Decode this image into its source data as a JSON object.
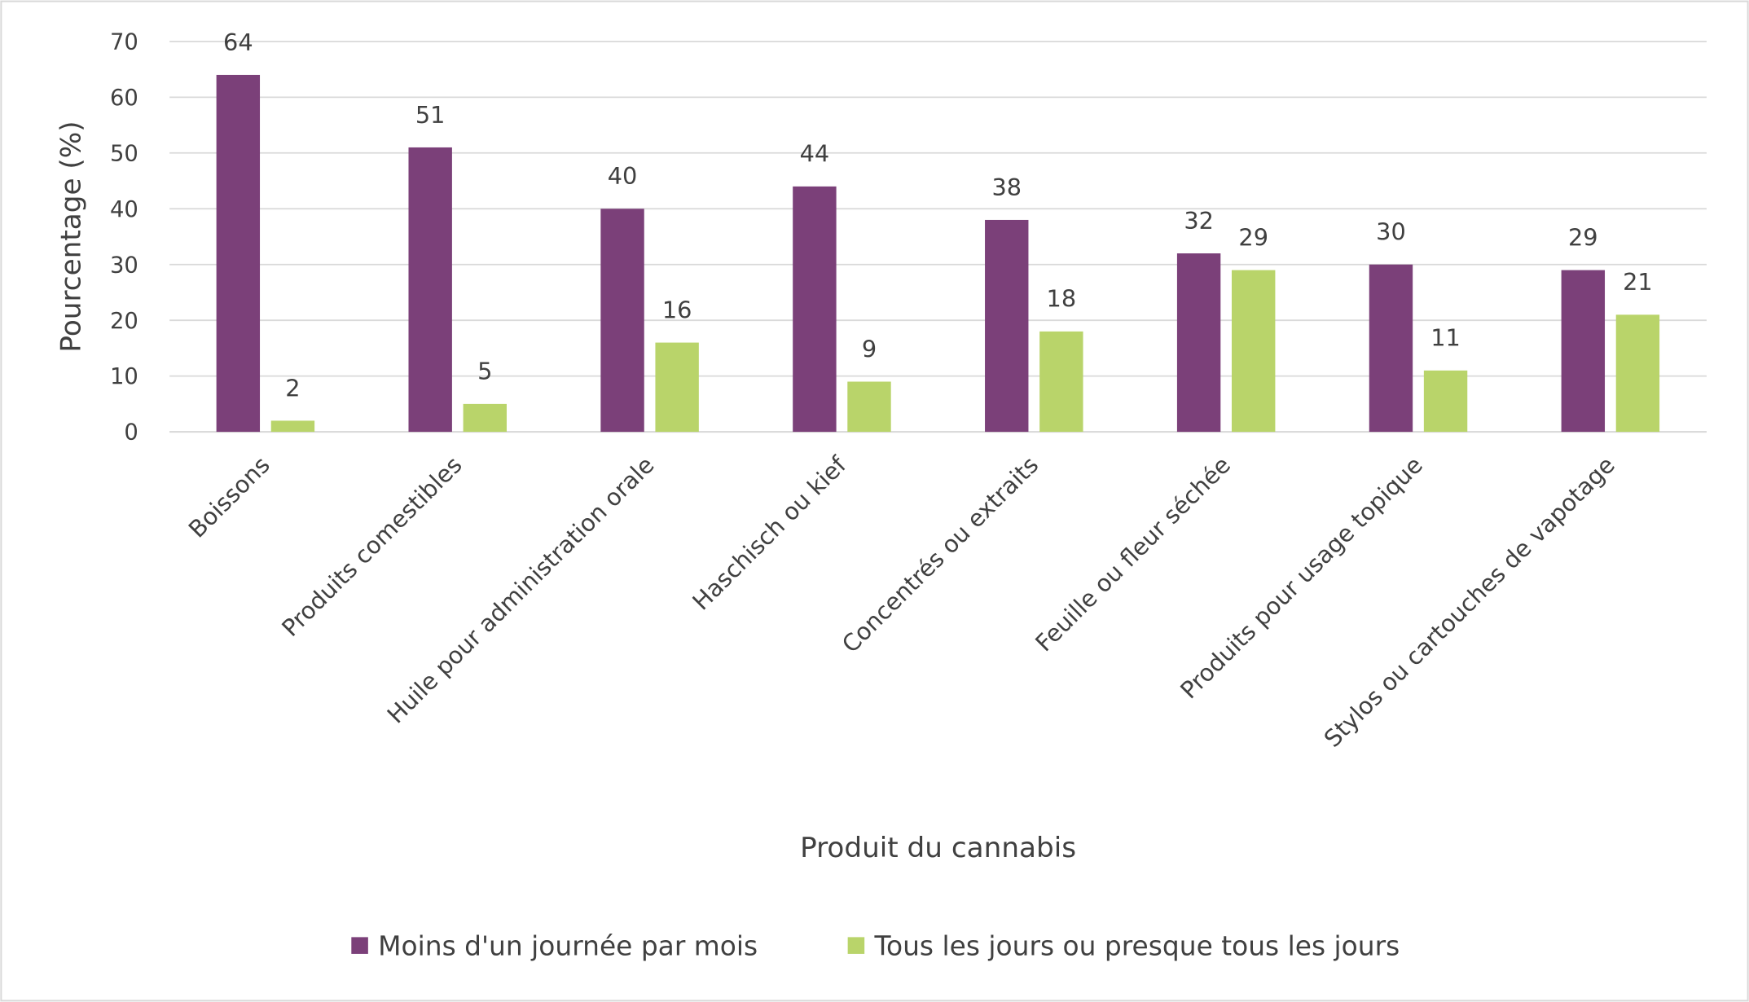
{
  "chart_data": {
    "type": "bar",
    "title": "",
    "xlabel": "Produit du cannabis",
    "ylabel": "Pourcentage (%)",
    "ylim": [
      0,
      70
    ],
    "yticks": [
      "0",
      "10",
      "20",
      "30",
      "40",
      "50",
      "60",
      "70"
    ],
    "grid": true,
    "legend_position": "bottom",
    "categories": [
      "Boissons",
      "Produits comestibles",
      "Huile pour administration orale",
      "Haschisch ou kief",
      "Concentrés ou extraits",
      "Feuille ou fleur séchée",
      "Produits pour usage topique",
      "Stylos ou cartouches de vapotage"
    ],
    "series": [
      {
        "name": "Moins d'un journée par mois",
        "color": "#7B4079",
        "values": [
          64,
          51,
          40,
          44,
          38,
          32,
          30,
          29
        ]
      },
      {
        "name": "Tous les jours ou presque tous les jours",
        "color": "#B9D46A",
        "values": [
          2,
          5,
          16,
          9,
          18,
          29,
          11,
          21
        ]
      }
    ]
  }
}
